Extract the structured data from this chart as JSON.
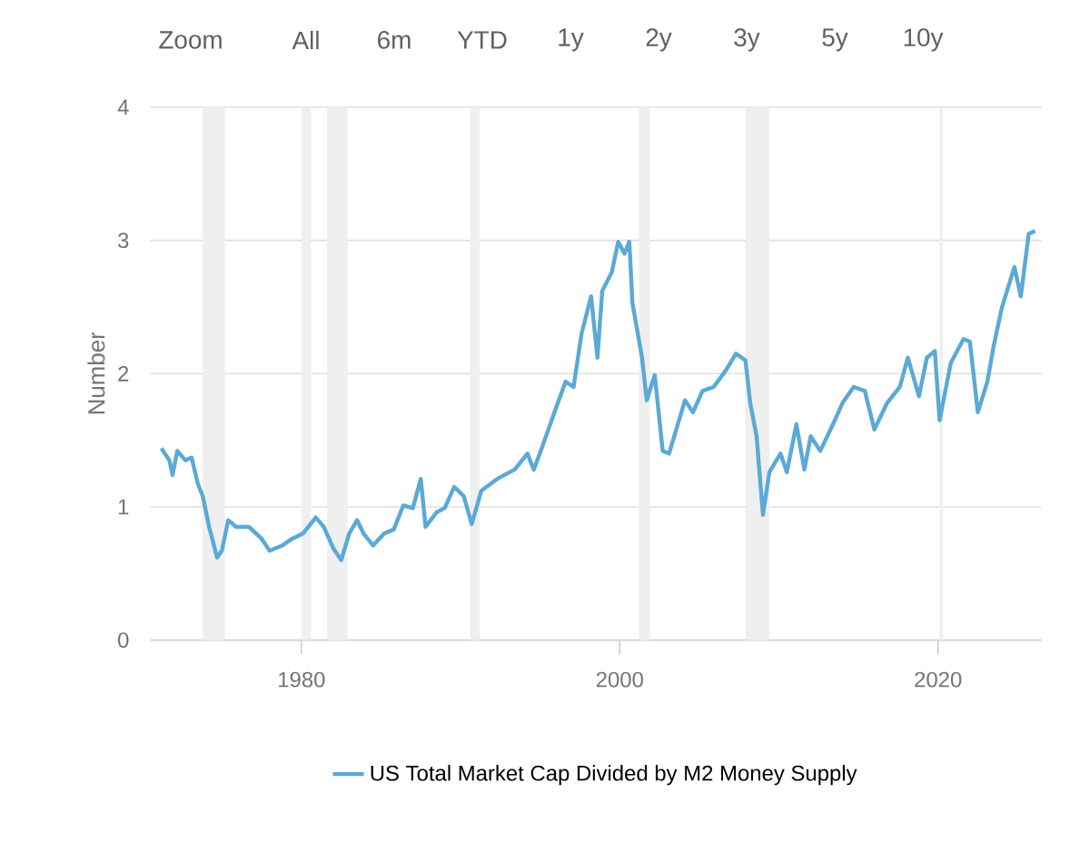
{
  "chart_data": {
    "type": "line",
    "ylabel": "Number",
    "annotations": [
      "Zoom",
      "All",
      "6m",
      "YTD",
      "1y",
      "2y",
      "3y",
      "5y",
      "10y"
    ],
    "xlim": [
      1970.5,
      2026.5
    ],
    "xticks": [
      1980,
      2000,
      2020
    ],
    "ylim": [
      0,
      4
    ],
    "yticks": [
      0,
      1,
      2,
      3,
      4
    ],
    "grid": "y",
    "legend": "bottom",
    "bands": [
      {
        "axis": "x",
        "from": 1973.8,
        "to": 1975.2,
        "color": "#efefef"
      },
      {
        "axis": "x",
        "from": 1980.0,
        "to": 1980.6,
        "color": "#efefef"
      },
      {
        "axis": "x",
        "from": 1981.6,
        "to": 1982.9,
        "color": "#efefef"
      },
      {
        "axis": "x",
        "from": 1990.6,
        "to": 1991.2,
        "color": "#efefef"
      },
      {
        "axis": "x",
        "from": 2001.2,
        "to": 2001.9,
        "color": "#efefef"
      },
      {
        "axis": "x",
        "from": 2007.9,
        "to": 2009.4,
        "color": "#efefef"
      },
      {
        "axis": "x",
        "from": 2020.1,
        "to": 2020.3,
        "color": "#efefef"
      }
    ],
    "series": [
      {
        "name": "US Total Market Cap Divided by M2 Money Supply",
        "color": "#5aa9d6",
        "x": [
          1971.2,
          1971.7,
          1971.9,
          1972.2,
          1972.7,
          1973.1,
          1973.5,
          1973.8,
          1974.2,
          1974.7,
          1975.0,
          1975.4,
          1975.9,
          1976.7,
          1977.5,
          1978.0,
          1978.8,
          1979.4,
          1980.1,
          1980.9,
          1981.4,
          1982.0,
          1982.5,
          1983.0,
          1983.5,
          1983.9,
          1984.5,
          1985.2,
          1985.8,
          1986.4,
          1987.0,
          1987.5,
          1987.8,
          1988.5,
          1989.0,
          1989.6,
          1990.2,
          1990.7,
          1991.3,
          1992.3,
          1993.4,
          1994.2,
          1994.6,
          1995.1,
          1995.9,
          1996.6,
          1997.1,
          1997.6,
          1998.2,
          1998.6,
          1998.9,
          1999.5,
          1999.9,
          2000.3,
          2000.6,
          2000.8,
          2001.4,
          2001.7,
          2002.2,
          2002.7,
          2003.1,
          2004.1,
          2004.6,
          2005.2,
          2005.9,
          2006.7,
          2007.3,
          2007.9,
          2008.2,
          2008.6,
          2009.0,
          2009.4,
          2010.1,
          2010.5,
          2011.1,
          2011.6,
          2012.0,
          2012.6,
          2013.4,
          2014.0,
          2014.7,
          2015.4,
          2016.0,
          2016.8,
          2017.6,
          2018.1,
          2018.8,
          2019.3,
          2019.8,
          2020.1,
          2020.8,
          2021.6,
          2022.0,
          2022.5,
          2023.1,
          2023.5,
          2024.0,
          2024.8,
          2025.2,
          2025.7,
          2026.1
        ],
        "values": [
          1.44,
          1.35,
          1.24,
          1.42,
          1.35,
          1.37,
          1.17,
          1.08,
          0.85,
          0.62,
          0.67,
          0.9,
          0.85,
          0.85,
          0.76,
          0.67,
          0.71,
          0.76,
          0.8,
          0.92,
          0.85,
          0.69,
          0.6,
          0.8,
          0.9,
          0.8,
          0.71,
          0.8,
          0.83,
          1.01,
          0.99,
          1.21,
          0.85,
          0.96,
          0.99,
          1.15,
          1.08,
          0.87,
          1.12,
          1.21,
          1.28,
          1.4,
          1.28,
          1.44,
          1.71,
          1.94,
          1.9,
          2.3,
          2.58,
          2.12,
          2.62,
          2.76,
          2.99,
          2.9,
          2.99,
          2.53,
          2.12,
          1.8,
          1.99,
          1.42,
          1.4,
          1.8,
          1.71,
          1.87,
          1.9,
          2.03,
          2.15,
          2.1,
          1.78,
          1.53,
          0.94,
          1.26,
          1.4,
          1.26,
          1.62,
          1.28,
          1.53,
          1.42,
          1.62,
          1.78,
          1.9,
          1.87,
          1.58,
          1.78,
          1.9,
          2.12,
          1.83,
          2.12,
          2.17,
          1.65,
          2.08,
          2.26,
          2.24,
          1.71,
          1.94,
          2.21,
          2.49,
          2.8,
          2.58,
          3.05,
          3.07
        ]
      }
    ]
  }
}
